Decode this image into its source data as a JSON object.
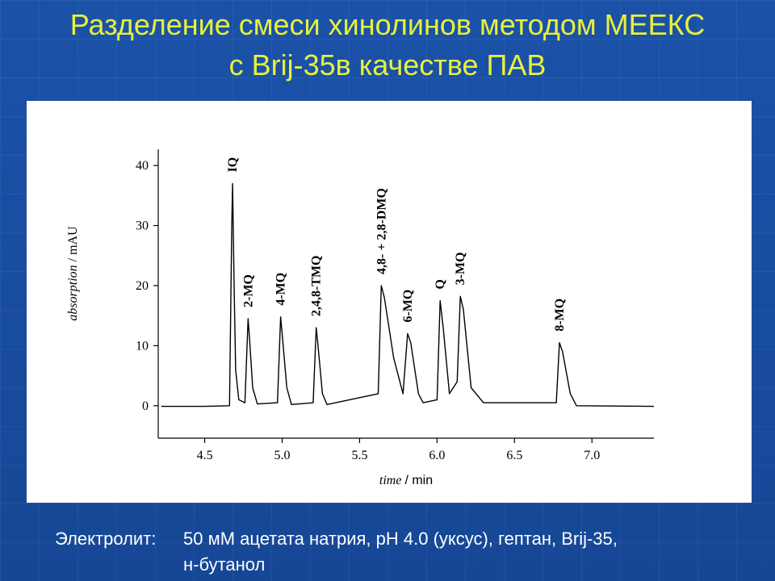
{
  "title": [
    "Разделение смеси хинолинов методом МЕЕКС",
    "с Brij-35в качестве ПАВ"
  ],
  "footer": {
    "label": "Электролит:",
    "lines": [
      "50 мМ ацетата натрия, рН 4.0 (уксус), гептан, Brij-35,",
      "н-бутанол"
    ]
  },
  "chart_data": {
    "type": "line",
    "color": "#000000",
    "x_label": {
      "term": "time",
      "unit": "/ min"
    },
    "y_label": {
      "term": "absorption",
      "unit": "/ mAU"
    },
    "xlim": [
      4.2,
      7.4
    ],
    "ylim": [
      -5.4,
      42.7
    ],
    "xticks": [
      4.5,
      {
        "value": 5,
        "label": "5.0"
      },
      5.5,
      {
        "value": 6,
        "label": "6.0"
      },
      6.5,
      {
        "value": 7,
        "label": "7.0"
      }
    ],
    "yticks": [
      0,
      10,
      20,
      30,
      40
    ],
    "x": [
      4.22,
      4.5,
      4.66,
      4.675,
      4.68,
      4.69,
      4.7,
      4.72,
      4.76,
      4.78,
      4.79,
      4.81,
      4.84,
      4.97,
      4.99,
      5.0,
      5.03,
      5.06,
      5.2,
      5.22,
      5.23,
      5.26,
      5.29,
      5.62,
      5.64,
      5.66,
      5.72,
      5.78,
      5.81,
      5.83,
      5.88,
      5.91,
      6.0,
      6.02,
      6.04,
      6.08,
      6.13,
      6.15,
      6.17,
      6.22,
      6.3,
      6.77,
      6.79,
      6.81,
      6.86,
      6.9,
      7.4
    ],
    "y": [
      -0.1,
      -0.1,
      0,
      30,
      37,
      20,
      6,
      1,
      0.5,
      14.5,
      11,
      3,
      0.3,
      0.5,
      14.8,
      12,
      3,
      0.2,
      0.5,
      13,
      10.5,
      2,
      0.2,
      2,
      20,
      18,
      8,
      2,
      12,
      10.5,
      2,
      0.5,
      1,
      17.5,
      13,
      2,
      4,
      18.2,
      16,
      3,
      0.5,
      0.5,
      10.5,
      9,
      2,
      0,
      -0.1
    ],
    "annotations": [
      {
        "text": "IQ",
        "x": 4.68,
        "y": 37
      },
      {
        "text": "2-MQ",
        "x": 4.78,
        "y": 14.5
      },
      {
        "text": "4-MQ",
        "x": 4.99,
        "y": 14.8
      },
      {
        "text": "2,4,8-TMQ",
        "x": 5.22,
        "y": 13
      },
      {
        "text": "4,8- + 2,8-DMQ",
        "x": 5.64,
        "y": 20
      },
      {
        "text": "6-MQ",
        "x": 5.81,
        "y": 12
      },
      {
        "text": "Q",
        "x": 6.02,
        "y": 17.5
      },
      {
        "text": "3-MQ",
        "x": 6.15,
        "y": 18.2
      },
      {
        "text": "8-MQ",
        "x": 6.79,
        "y": 10.5
      }
    ]
  }
}
